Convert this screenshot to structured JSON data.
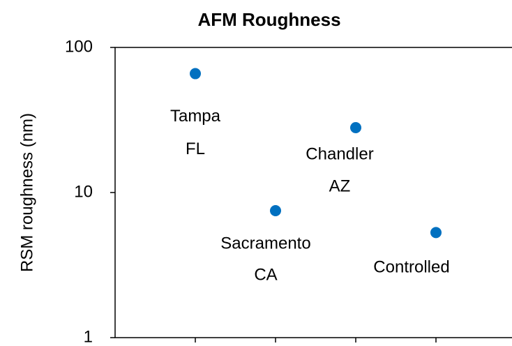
{
  "chart_data": {
    "type": "scatter",
    "title": "AFM Roughness",
    "y_label": "RSM roughness (nm)",
    "x": [
      1,
      2,
      3,
      4
    ],
    "values": [
      66,
      7.5,
      28,
      5.3
    ],
    "point_labels": [
      [
        "Tampa",
        "FL"
      ],
      [
        "Sacramento",
        "CA"
      ],
      [
        "Chandler",
        "AZ"
      ],
      [
        "Controlled"
      ]
    ],
    "color": "#0070c0",
    "xlim": [
      0,
      5
    ],
    "xticks": [
      1,
      2,
      3,
      4
    ],
    "ylim": [
      1,
      100
    ],
    "yticks": [
      1,
      10,
      100
    ],
    "log_y": true
  }
}
